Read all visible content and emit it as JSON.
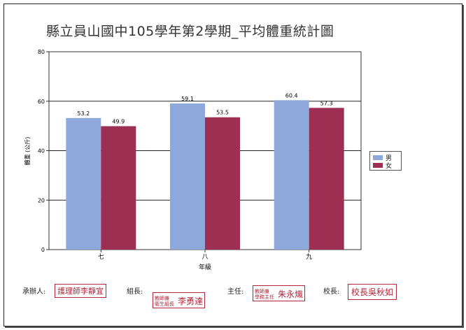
{
  "chart_data": {
    "type": "bar",
    "title": "縣立員山國中105學年第2學期_平均體重統計圖",
    "xlabel": "年級",
    "ylabel": "體重 (公斤)",
    "categories": [
      "七",
      "八",
      "九"
    ],
    "series": [
      {
        "name": "男",
        "color": "#8ea8dc",
        "values": [
          53.2,
          59.1,
          60.4
        ]
      },
      {
        "name": "女",
        "color": "#9c2f52",
        "values": [
          49.9,
          53.5,
          57.3
        ]
      }
    ],
    "ylim": [
      0,
      80
    ],
    "yticks": [
      0,
      20,
      40,
      60,
      80
    ],
    "grid": true,
    "legend_position": "right"
  },
  "signatures": {
    "preparer_label": "承辦人:",
    "preparer_stamp_name": "護理師李靜宜",
    "group_leader_label": "組長:",
    "group_leader_stamp_line1": "教師兼",
    "group_leader_stamp_line2": "衛生組長",
    "group_leader_stamp_name": "李勇達",
    "director_label": "主任:",
    "director_stamp_line1": "教師兼",
    "director_stamp_line2": "學務主任",
    "director_stamp_name": "朱永熾",
    "principal_label": "校長:",
    "principal_stamp_name": "校長吳秋如"
  }
}
